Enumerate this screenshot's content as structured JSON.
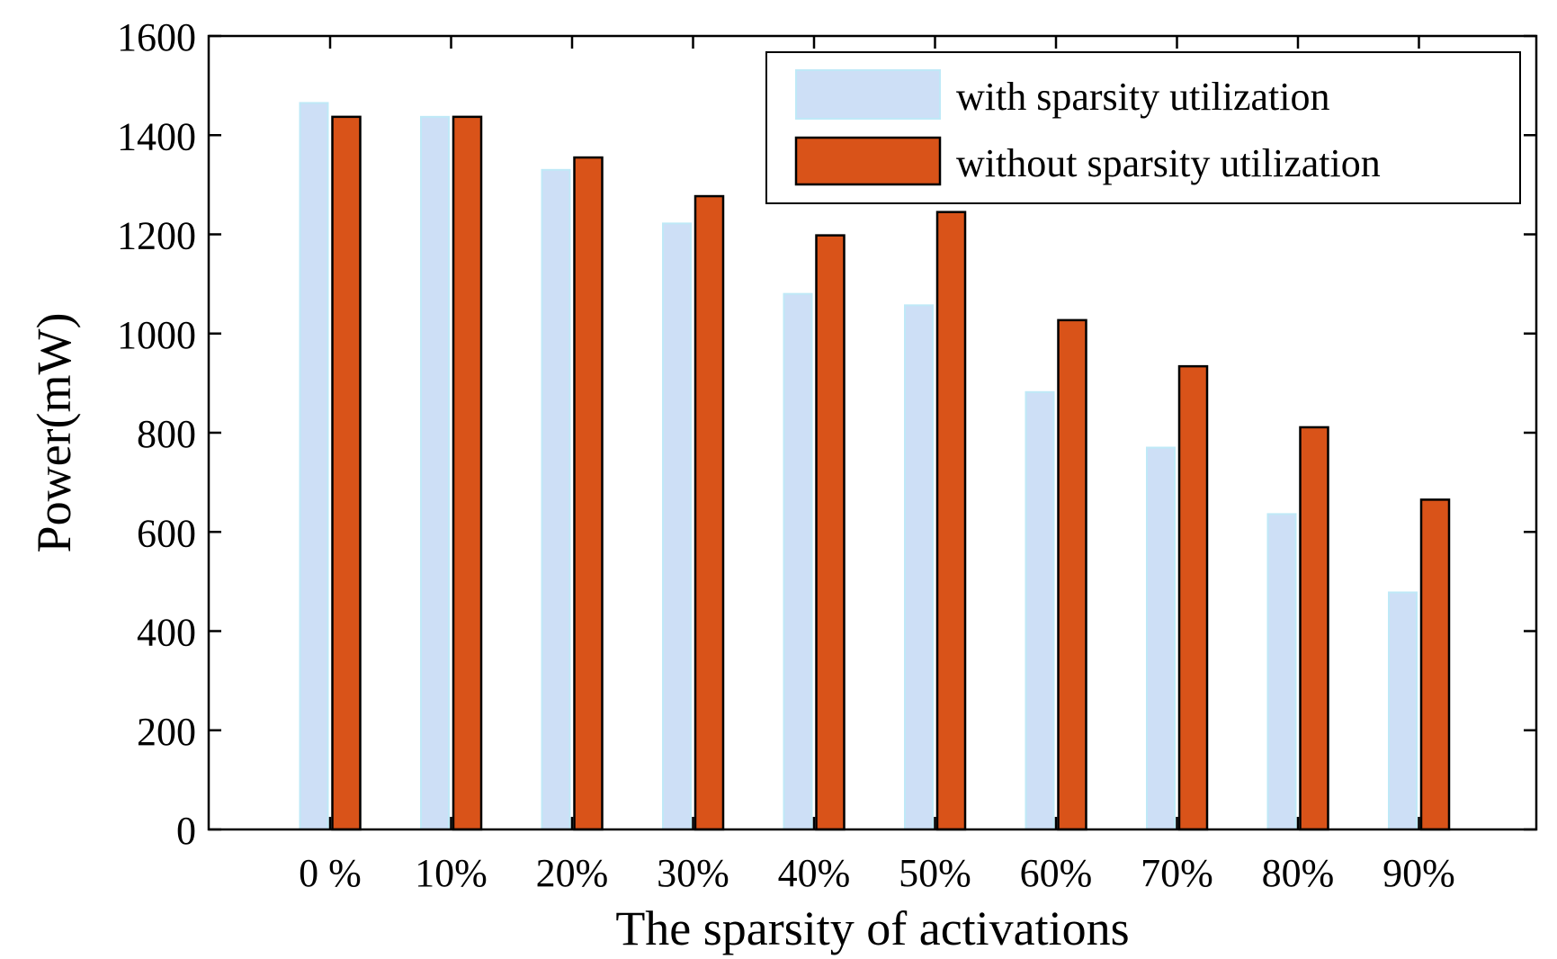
{
  "chart_data": {
    "type": "bar",
    "xlabel": "The sparsity of activations",
    "ylabel": "Power(mW)",
    "categories": [
      "0 %",
      "10%",
      "20%",
      "30%",
      "40%",
      "50%",
      "60%",
      "70%",
      "80%",
      "90%"
    ],
    "ylim": [
      0,
      1600
    ],
    "yticks": [
      0,
      200,
      400,
      600,
      800,
      1000,
      1200,
      1400,
      1600
    ],
    "grid": false,
    "legend_position": "top-right",
    "series": [
      {
        "name": "with sparsity utilization",
        "color": "#cddff6",
        "values": [
          1465,
          1437,
          1330,
          1222,
          1080,
          1057,
          882,
          770,
          636,
          478
        ]
      },
      {
        "name": "without sparsity utilization",
        "color": "#d95319",
        "values": [
          1437,
          1437,
          1355,
          1277,
          1198,
          1245,
          1027,
          934,
          811,
          665
        ]
      }
    ]
  }
}
